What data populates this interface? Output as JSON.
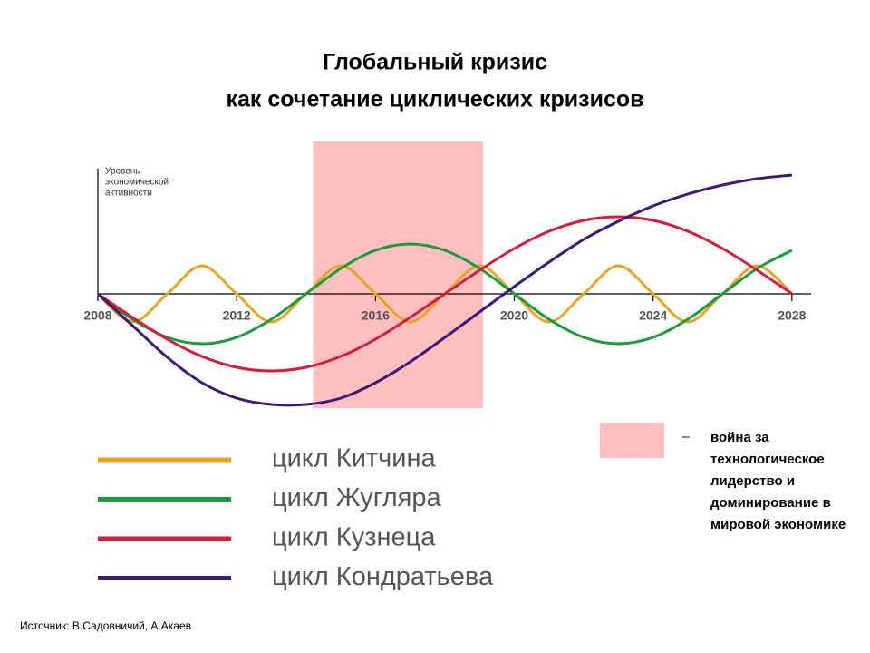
{
  "chart_data": {
    "type": "line",
    "title": [
      "Глобальный кризис",
      "как сочетание циклических кризисов"
    ],
    "ylabel": [
      "Уровень",
      "экономической",
      "активности"
    ],
    "x": [
      2008,
      2009,
      2010,
      2011,
      2012,
      2013,
      2014,
      2015,
      2016,
      2017,
      2018,
      2019,
      2020,
      2021,
      2022,
      2023,
      2024,
      2025,
      2026,
      2027,
      2028
    ],
    "xlim": [
      2008,
      2028.5
    ],
    "xticks": [
      2008,
      2012,
      2016,
      2020,
      2024,
      2028
    ],
    "ylim": [
      -1.5,
      1.4
    ],
    "series": [
      {
        "name": "цикл Китчина",
        "color": "#e9a325",
        "values": [
          0,
          -0.31,
          0,
          0.31,
          0,
          -0.31,
          0,
          0.31,
          0,
          -0.31,
          0,
          0.31,
          0,
          -0.31,
          0,
          0.31,
          0,
          -0.31,
          0,
          0.31,
          0
        ]
      },
      {
        "name": "цикл Жугляра",
        "color": "#1c9a3e",
        "values": [
          0,
          -0.28,
          -0.48,
          -0.55,
          -0.48,
          -0.28,
          0,
          0.28,
          0.48,
          0.55,
          0.48,
          0.28,
          0,
          -0.28,
          -0.48,
          -0.55,
          -0.48,
          -0.28,
          0,
          0.28,
          0.48
        ]
      },
      {
        "name": "цикл Кузнеца",
        "color": "#d11f3c",
        "values": [
          0,
          -0.26,
          -0.5,
          -0.69,
          -0.81,
          -0.85,
          -0.81,
          -0.69,
          -0.5,
          -0.26,
          0,
          0.26,
          0.5,
          0.69,
          0.81,
          0.85,
          0.81,
          0.69,
          0.5,
          0.26,
          0
        ]
      },
      {
        "name": "цикл Кондратьева",
        "color": "#3b1a78",
        "values": [
          0,
          -0.35,
          -0.7,
          -0.98,
          -1.15,
          -1.22,
          -1.22,
          -1.15,
          -0.98,
          -0.75,
          -0.48,
          -0.2,
          0.08,
          0.35,
          0.6,
          0.8,
          0.97,
          1.1,
          1.2,
          1.27,
          1.31
        ]
      }
    ],
    "highlight": {
      "x": [
        2014.2,
        2019.1
      ],
      "color": "#ffbfbf",
      "marker": "–",
      "label": "война за технологическое лидерство и доминирование в мировой экономике"
    },
    "source": "Источник: В.Садовничий, А.Акаев"
  }
}
